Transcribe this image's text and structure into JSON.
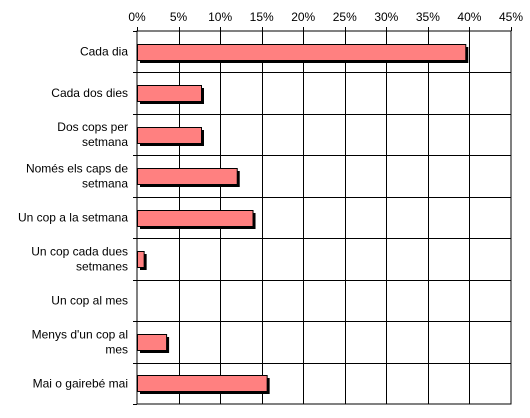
{
  "chart_data": {
    "type": "bar",
    "orientation": "horizontal",
    "title": "",
    "xlabel": "",
    "ylabel": "",
    "xlim": [
      0,
      45
    ],
    "x_ticks": [
      "0%",
      "5%",
      "10%",
      "15%",
      "20%",
      "25%",
      "30%",
      "35%",
      "40%",
      "45%"
    ],
    "x_tick_values": [
      0,
      5,
      10,
      15,
      20,
      25,
      30,
      35,
      40,
      45
    ],
    "x_axis_position": "top",
    "grid": true,
    "legend": "none",
    "bar_color": "#FF8080",
    "shadow_color": "#000000",
    "categories": [
      "Cada dia",
      "Cada dos dies",
      "Dos cops per setmana",
      "Només els caps de setmana",
      "Un cop a la setmana",
      "Un cop cada dues setmanes",
      "Un cop al mes",
      "Menys d'un cop al mes",
      "Mai o gairebé mai"
    ],
    "category_lines": [
      [
        "Cada dia"
      ],
      [
        "Cada dos dies"
      ],
      [
        "Dos cops per",
        "setmana"
      ],
      [
        "Només els caps de",
        "setmana"
      ],
      [
        "Un cop a la setmana"
      ],
      [
        "Un cop cada dues",
        "setmanes"
      ],
      [
        "Un cop al mes"
      ],
      [
        "Menys d'un cop al",
        "mes"
      ],
      [
        "Mai o gairebé mai"
      ]
    ],
    "values": [
      39.5,
      7.7,
      7.7,
      12.0,
      13.9,
      0.8,
      0,
      3.5,
      15.6
    ]
  }
}
